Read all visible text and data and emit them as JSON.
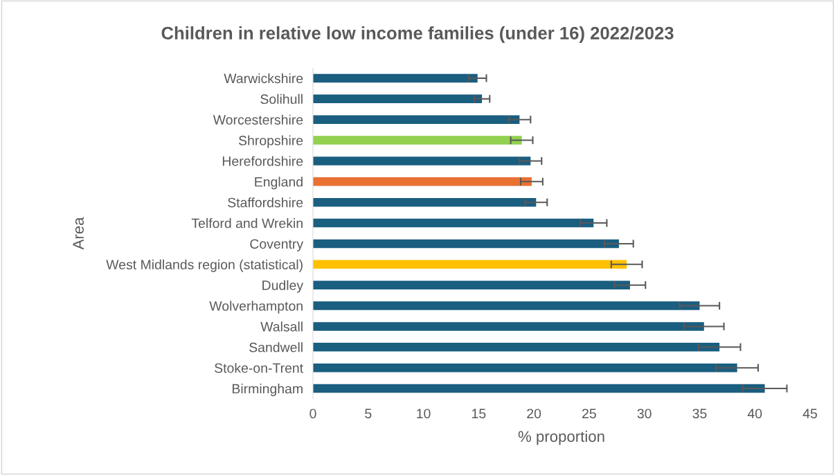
{
  "chart_data": {
    "type": "bar",
    "orientation": "horizontal",
    "title": "Children in relative low income families (under 16) 2022/2023",
    "xlabel": "% proportion",
    "ylabel": "Area",
    "categories": [
      "Warwickshire",
      "Solihull",
      "Worcestershire",
      "Shropshire",
      "Herefordshire",
      "England",
      "Staffordshire",
      "Telford and Wrekin",
      "Coventry",
      "West Midlands region (statistical)",
      "Dudley",
      "Wolverhampton",
      "Walsall",
      "Sandwell",
      "Stoke-on-Trent",
      "Birmingham"
    ],
    "values": [
      14.9,
      15.3,
      18.7,
      18.9,
      19.7,
      19.8,
      20.2,
      25.4,
      27.7,
      28.4,
      28.7,
      35.0,
      35.4,
      36.8,
      38.4,
      40.9
    ],
    "errors": [
      0.8,
      0.7,
      1.0,
      1.0,
      1.0,
      1.0,
      1.0,
      1.2,
      1.3,
      1.4,
      1.4,
      1.8,
      1.8,
      1.9,
      1.9,
      2.0
    ],
    "colors": [
      "#1a5e80",
      "#1a5e80",
      "#1a5e80",
      "#92d050",
      "#1a5e80",
      "#e97132",
      "#1a5e80",
      "#1a5e80",
      "#1a5e80",
      "#ffc000",
      "#1a5e80",
      "#1a5e80",
      "#1a5e80",
      "#1a5e80",
      "#1a5e80",
      "#1a5e80"
    ],
    "xlim": [
      0,
      45
    ],
    "xticks": [
      0,
      5,
      10,
      15,
      20,
      25,
      30,
      35,
      40,
      45
    ],
    "grid": false
  }
}
